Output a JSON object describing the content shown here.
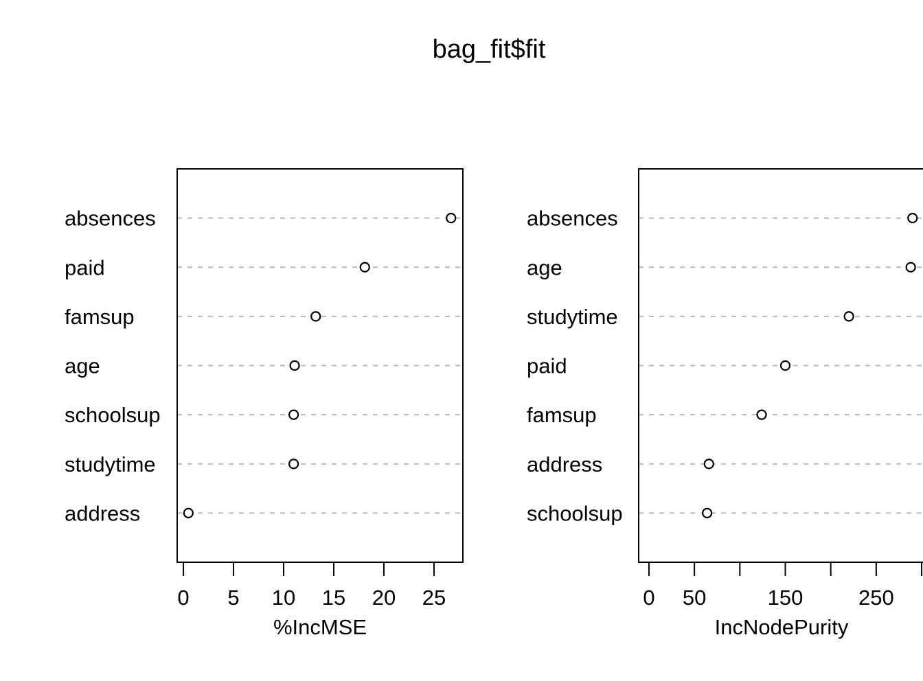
{
  "title": "bag_fit$fit",
  "colors": {
    "foreground": "#000000",
    "grid_line": "#b9b9b9",
    "background": "#ffffff",
    "point_fill": "#ffffff"
  },
  "chart_data": [
    {
      "type": "scatter",
      "variant": "dotchart",
      "xlabel": "%IncMSE",
      "categories": [
        "absences",
        "paid",
        "famsup",
        "age",
        "schoolsup",
        "studytime",
        "address"
      ],
      "values": [
        26.7,
        18.1,
        13.2,
        11.1,
        11.0,
        11.0,
        0.5
      ],
      "xlim": [
        -0.62,
        27.88
      ],
      "xticks": [
        0,
        5,
        10,
        15,
        20,
        25
      ],
      "xtick_labels": [
        "0",
        "5",
        "10",
        "15",
        "20",
        "25"
      ],
      "grid": "dashed-horizontal",
      "legend": "none",
      "point_style": "open-circle"
    },
    {
      "type": "scatter",
      "variant": "dotchart",
      "xlabel": "IncNodePurity",
      "categories": [
        "absences",
        "age",
        "studytime",
        "paid",
        "famsup",
        "address",
        "schoolsup"
      ],
      "values": [
        290,
        288,
        220,
        150,
        124,
        66,
        64
      ],
      "xlim": [
        -11.3,
        303
      ],
      "xticks": [
        0,
        50,
        100,
        150,
        200,
        250,
        300
      ],
      "xtick_labels": [
        "0",
        "50",
        "",
        "150",
        "",
        "250",
        ""
      ],
      "grid": "dashed-horizontal",
      "legend": "none",
      "point_style": "open-circle"
    }
  ]
}
